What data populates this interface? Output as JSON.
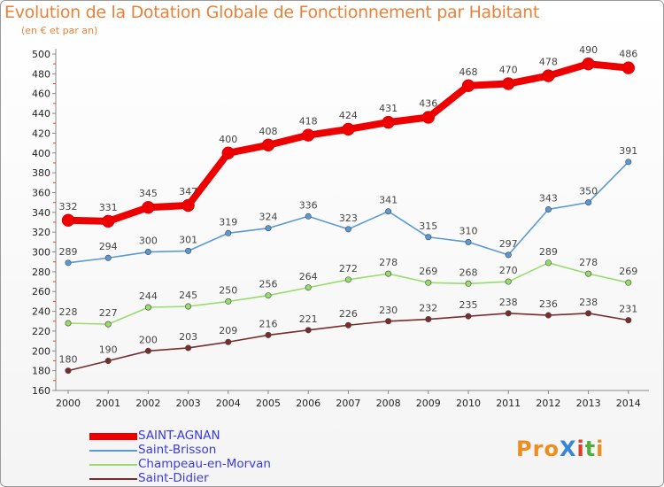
{
  "title": "Evolution de la Dotation Globale de Fonctionnement par Habitant",
  "subtitle": "(en € et par an)",
  "logo": {
    "text": "ProXiti",
    "colors": [
      "#f08c1e",
      "#f08c1e",
      "#f08c1e",
      "#3a84d8",
      "#e23b2a",
      "#4fae3c",
      "#f08c1e"
    ]
  },
  "chart_data": {
    "type": "line",
    "x": [
      "2000",
      "2001",
      "2002",
      "2003",
      "2004",
      "2005",
      "2006",
      "2007",
      "2008",
      "2009",
      "2010",
      "2011",
      "2012",
      "2013",
      "2014"
    ],
    "ylim": [
      160,
      500
    ],
    "yticks": [
      160,
      180,
      200,
      220,
      240,
      260,
      280,
      300,
      320,
      340,
      360,
      380,
      400,
      420,
      440,
      460,
      480,
      500
    ],
    "grid": false,
    "legend_position": "bottom-left",
    "series": [
      {
        "name": "SAINT-AGNAN",
        "color": "#ee0000",
        "values": [
          332,
          331,
          345,
          347,
          400,
          408,
          418,
          424,
          431,
          436,
          468,
          470,
          478,
          490,
          486
        ]
      },
      {
        "name": "Saint-Brisson",
        "color": "#5a9ad4",
        "values": [
          289,
          294,
          300,
          301,
          319,
          324,
          336,
          323,
          341,
          315,
          310,
          297,
          343,
          350,
          391
        ]
      },
      {
        "name": "Champeau-en-Morvan",
        "color": "#98dc6c",
        "values": [
          228,
          227,
          244,
          245,
          250,
          256,
          264,
          272,
          278,
          269,
          268,
          270,
          289,
          278,
          269
        ]
      },
      {
        "name": "Saint-Didier",
        "color": "#7a2c2c",
        "values": [
          180,
          190,
          200,
          203,
          209,
          216,
          221,
          226,
          230,
          232,
          235,
          238,
          236,
          238,
          231
        ]
      }
    ]
  }
}
